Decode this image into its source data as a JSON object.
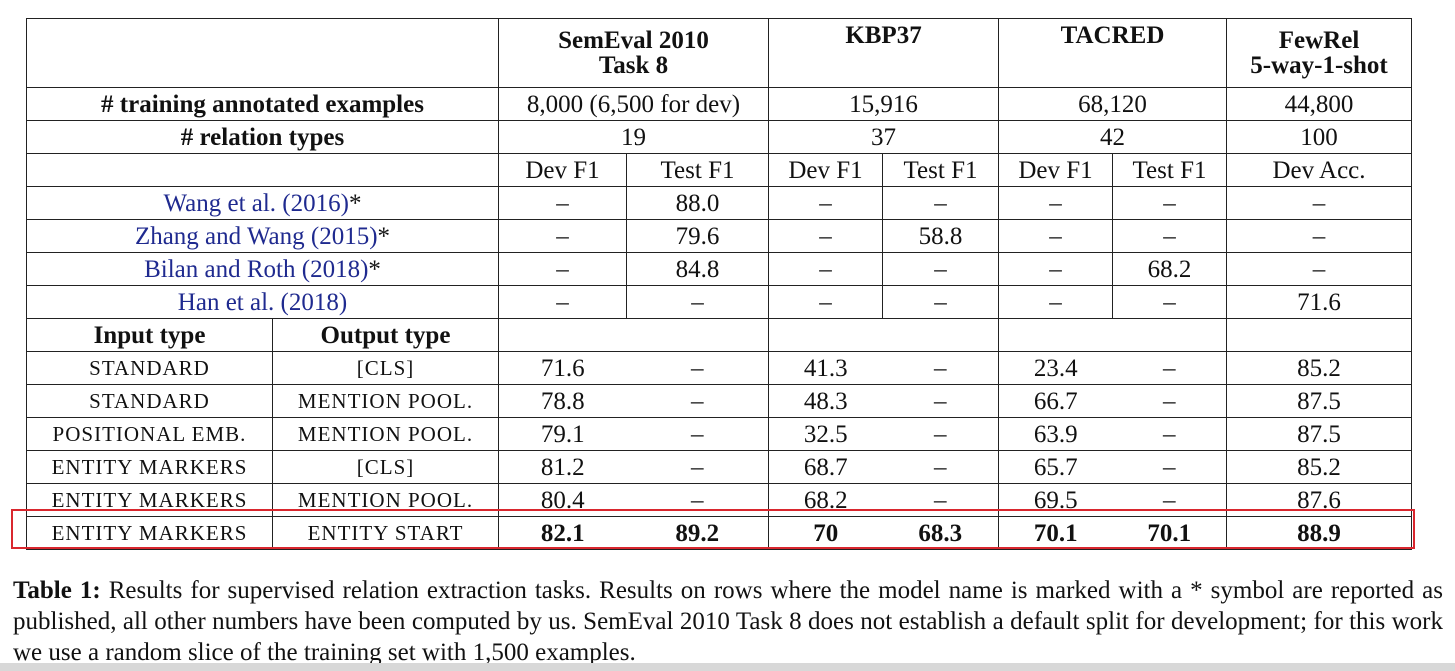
{
  "table": {
    "datasets": [
      "SemEval 2010\nTask 8",
      "KBP37",
      "TACRED",
      "FewRel\n5-way-1-shot"
    ],
    "training_label": "# training annotated examples",
    "training": [
      "8,000 (6,500 for dev)",
      "15,916",
      "68,120",
      "44,800"
    ],
    "relations_label": "# relation types",
    "relations": [
      "19",
      "37",
      "42",
      "100"
    ],
    "metrics": [
      "Dev F1",
      "Test F1",
      "Dev F1",
      "Test F1",
      "Dev F1",
      "Test F1",
      "Dev Acc."
    ],
    "published": [
      {
        "ref": "Wang et al. (2016)",
        "mark": "*",
        "values": [
          "–",
          "88.0",
          "–",
          "–",
          "–",
          "–",
          "–"
        ]
      },
      {
        "ref": "Zhang and Wang (2015)",
        "mark": "*",
        "values": [
          "–",
          "79.6",
          "–",
          "58.8",
          "–",
          "–",
          "–"
        ]
      },
      {
        "ref": "Bilan and Roth (2018)",
        "mark": "*",
        "values": [
          "–",
          "84.8",
          "–",
          "–",
          "–",
          "68.2",
          "–"
        ]
      },
      {
        "ref": "Han et al. (2018)",
        "mark": "",
        "values": [
          "–",
          "–",
          "–",
          "–",
          "–",
          "–",
          "71.6"
        ]
      }
    ],
    "input_type_label": "Input type",
    "output_type_label": "Output type",
    "variants": [
      {
        "input": "STANDARD",
        "output": "[CLS]",
        "values": [
          "71.6",
          "–",
          "41.3",
          "–",
          "23.4",
          "–",
          "85.2"
        ]
      },
      {
        "input": "STANDARD",
        "output": "MENTION POOL.",
        "values": [
          "78.8",
          "–",
          "48.3",
          "–",
          "66.7",
          "–",
          "87.5"
        ]
      },
      {
        "input": "POSITIONAL EMB.",
        "output": "MENTION POOL.",
        "values": [
          "79.1",
          "–",
          "32.5",
          "–",
          "63.9",
          "–",
          "87.5"
        ]
      },
      {
        "input": "ENTITY MARKERS",
        "output": "[CLS]",
        "values": [
          "81.2",
          "–",
          "68.7",
          "–",
          "65.7",
          "–",
          "85.2"
        ]
      },
      {
        "input": "ENTITY MARKERS",
        "output": "MENTION POOL.",
        "values": [
          "80.4",
          "–",
          "68.2",
          "–",
          "69.5",
          "–",
          "87.6"
        ]
      },
      {
        "input": "ENTITY MARKERS",
        "output": "ENTITY START",
        "values": [
          "82.1",
          "89.2",
          "70",
          "68.3",
          "70.1",
          "70.1",
          "88.9"
        ],
        "bold": true
      }
    ]
  },
  "caption": {
    "label": "Table 1:",
    "text": "Results for supervised relation extraction tasks. Results on rows where the model name is marked with a * symbol are reported as published, all other numbers have been computed by us. SemEval 2010 Task 8 does not establish a default split for development; for this work we use a random slice of the training set with 1,500 examples."
  },
  "colors": {
    "highlight": "#d9272e",
    "citation": "#1f2a8f"
  }
}
